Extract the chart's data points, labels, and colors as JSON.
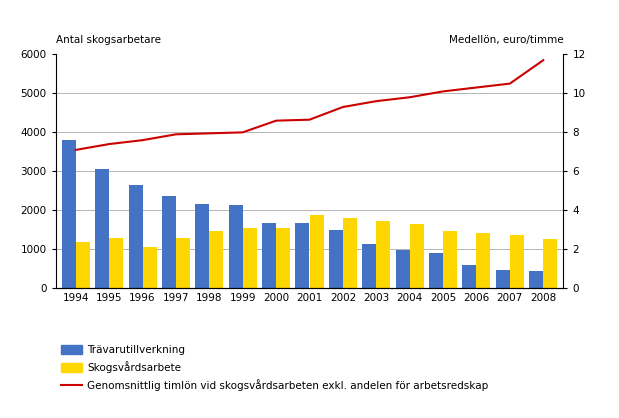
{
  "years": [
    1994,
    1995,
    1996,
    1997,
    1998,
    1999,
    2000,
    2001,
    2002,
    2003,
    2004,
    2005,
    2006,
    2007,
    2008
  ],
  "travarutillverkning": [
    3800,
    3050,
    2650,
    2380,
    2160,
    2130,
    1680,
    1680,
    1500,
    1130,
    980,
    920,
    600,
    460,
    440
  ],
  "skogsvardsarbete": [
    1200,
    1290,
    1060,
    1280,
    1480,
    1560,
    1560,
    1870,
    1800,
    1740,
    1650,
    1480,
    1430,
    1360,
    1270
  ],
  "medelloen": [
    7.1,
    7.4,
    7.6,
    7.9,
    7.95,
    8.0,
    8.6,
    8.65,
    9.3,
    9.6,
    9.8,
    10.1,
    10.3,
    10.5,
    11.7
  ],
  "bar_color_blue": "#4472C4",
  "bar_color_yellow": "#FFD700",
  "line_color": "#CC0000",
  "label_left": "Antal skogsarbetare",
  "label_right": "Medellön, euro/timme",
  "ylim_left": [
    0,
    6000
  ],
  "ylim_right": [
    0,
    12
  ],
  "yticks_left": [
    0,
    1000,
    2000,
    3000,
    4000,
    5000,
    6000
  ],
  "yticks_right": [
    0,
    2,
    4,
    6,
    8,
    10,
    12
  ],
  "legend_blue": "Trävarutillverkning",
  "legend_yellow": "Skogsvårdsarbete",
  "legend_line": "Genomsnittlig timlön vid skogsvårdsarbeten exkl. andelen för arbetsredskap",
  "background_color": "#ffffff",
  "grid_color": "#aaaaaa"
}
